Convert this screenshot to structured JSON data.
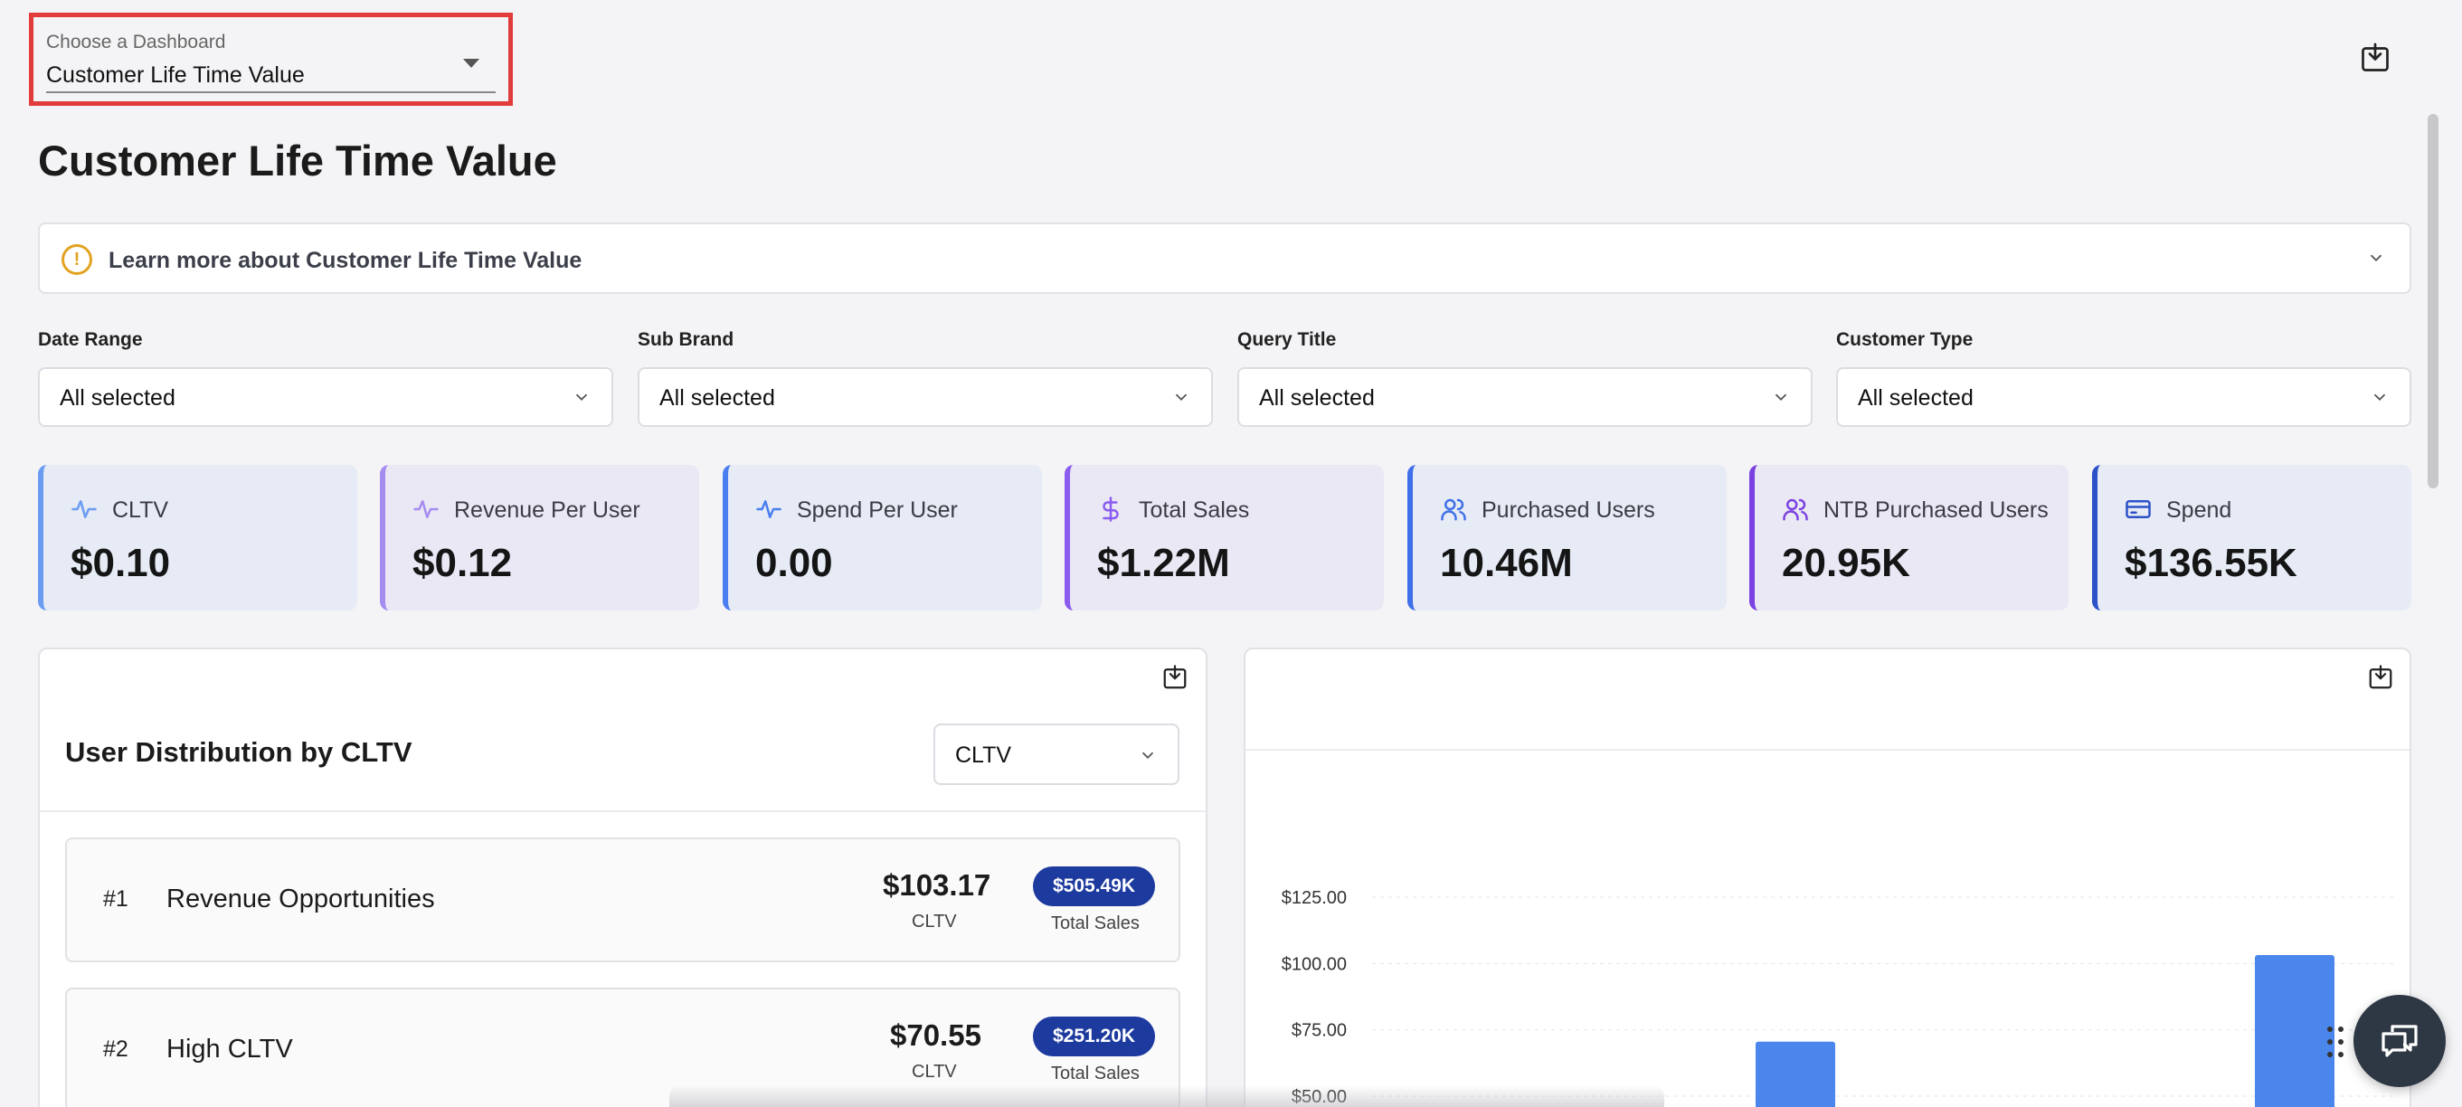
{
  "dashboard_chooser": {
    "label": "Choose a Dashboard",
    "value": "Customer Life Time Value"
  },
  "page_title": "Customer Life Time Value",
  "learn_more": "Learn more about Customer Life Time Value",
  "filters": [
    {
      "label": "Date Range",
      "value": "All selected"
    },
    {
      "label": "Sub Brand",
      "value": "All selected"
    },
    {
      "label": "Query Title",
      "value": "All selected"
    },
    {
      "label": "Customer Type",
      "value": "All selected"
    }
  ],
  "kpis": [
    {
      "label": "CLTV",
      "value": "$0.10",
      "icon": "activity-icon",
      "bg": "#e6ebf5",
      "accent": "#6b9cf2"
    },
    {
      "label": "Revenue Per User",
      "value": "$0.12",
      "icon": "activity-icon",
      "bg": "#ebe8f5",
      "accent": "#a58cf0"
    },
    {
      "label": "Spend Per User",
      "value": "0.00",
      "icon": "activity-icon",
      "bg": "#e6ebf5",
      "accent": "#4a7ef0"
    },
    {
      "label": "Total Sales",
      "value": "$1.22M",
      "icon": "dollar-icon",
      "bg": "#ebe8f5",
      "accent": "#8b5cf0"
    },
    {
      "label": "Purchased Users",
      "value": "10.46M",
      "icon": "users-icon",
      "bg": "#e6ebf5",
      "accent": "#3f6fe8"
    },
    {
      "label": "NTB Purchased Users",
      "value": "20.95K",
      "icon": "users-icon",
      "bg": "#ebe8f5",
      "accent": "#7a42e0"
    },
    {
      "label": "Spend",
      "value": "$136.55K",
      "icon": "credit-card-icon",
      "bg": "#e6ebf5",
      "accent": "#2d52c8"
    }
  ],
  "distribution": {
    "title": "User Distribution by CLTV",
    "metric_select": "CLTV",
    "rows": [
      {
        "rank": "#1",
        "name": "Revenue Opportunities",
        "cltv": "$103.17",
        "cltv_label": "CLTV",
        "total_sales": "$505.49K",
        "total_sales_label": "Total Sales"
      },
      {
        "rank": "#2",
        "name": "High CLTV",
        "cltv": "$70.55",
        "cltv_label": "CLTV",
        "total_sales": "$251.20K",
        "total_sales_label": "Total Sales"
      }
    ]
  },
  "chart_data": {
    "type": "bar",
    "title": "",
    "xlabel": "",
    "ylabel": "",
    "y_ticks": [
      "$125.00",
      "$100.00",
      "$75.00",
      "$50.00"
    ],
    "ylim": [
      50,
      125
    ],
    "values": [
      70.55,
      103.17
    ],
    "bar_color": "#4a86ec",
    "grid": true
  },
  "colors": {
    "highlight": "#e23b3b",
    "badge": "#1d3a9e",
    "warning": "#e2a322"
  }
}
